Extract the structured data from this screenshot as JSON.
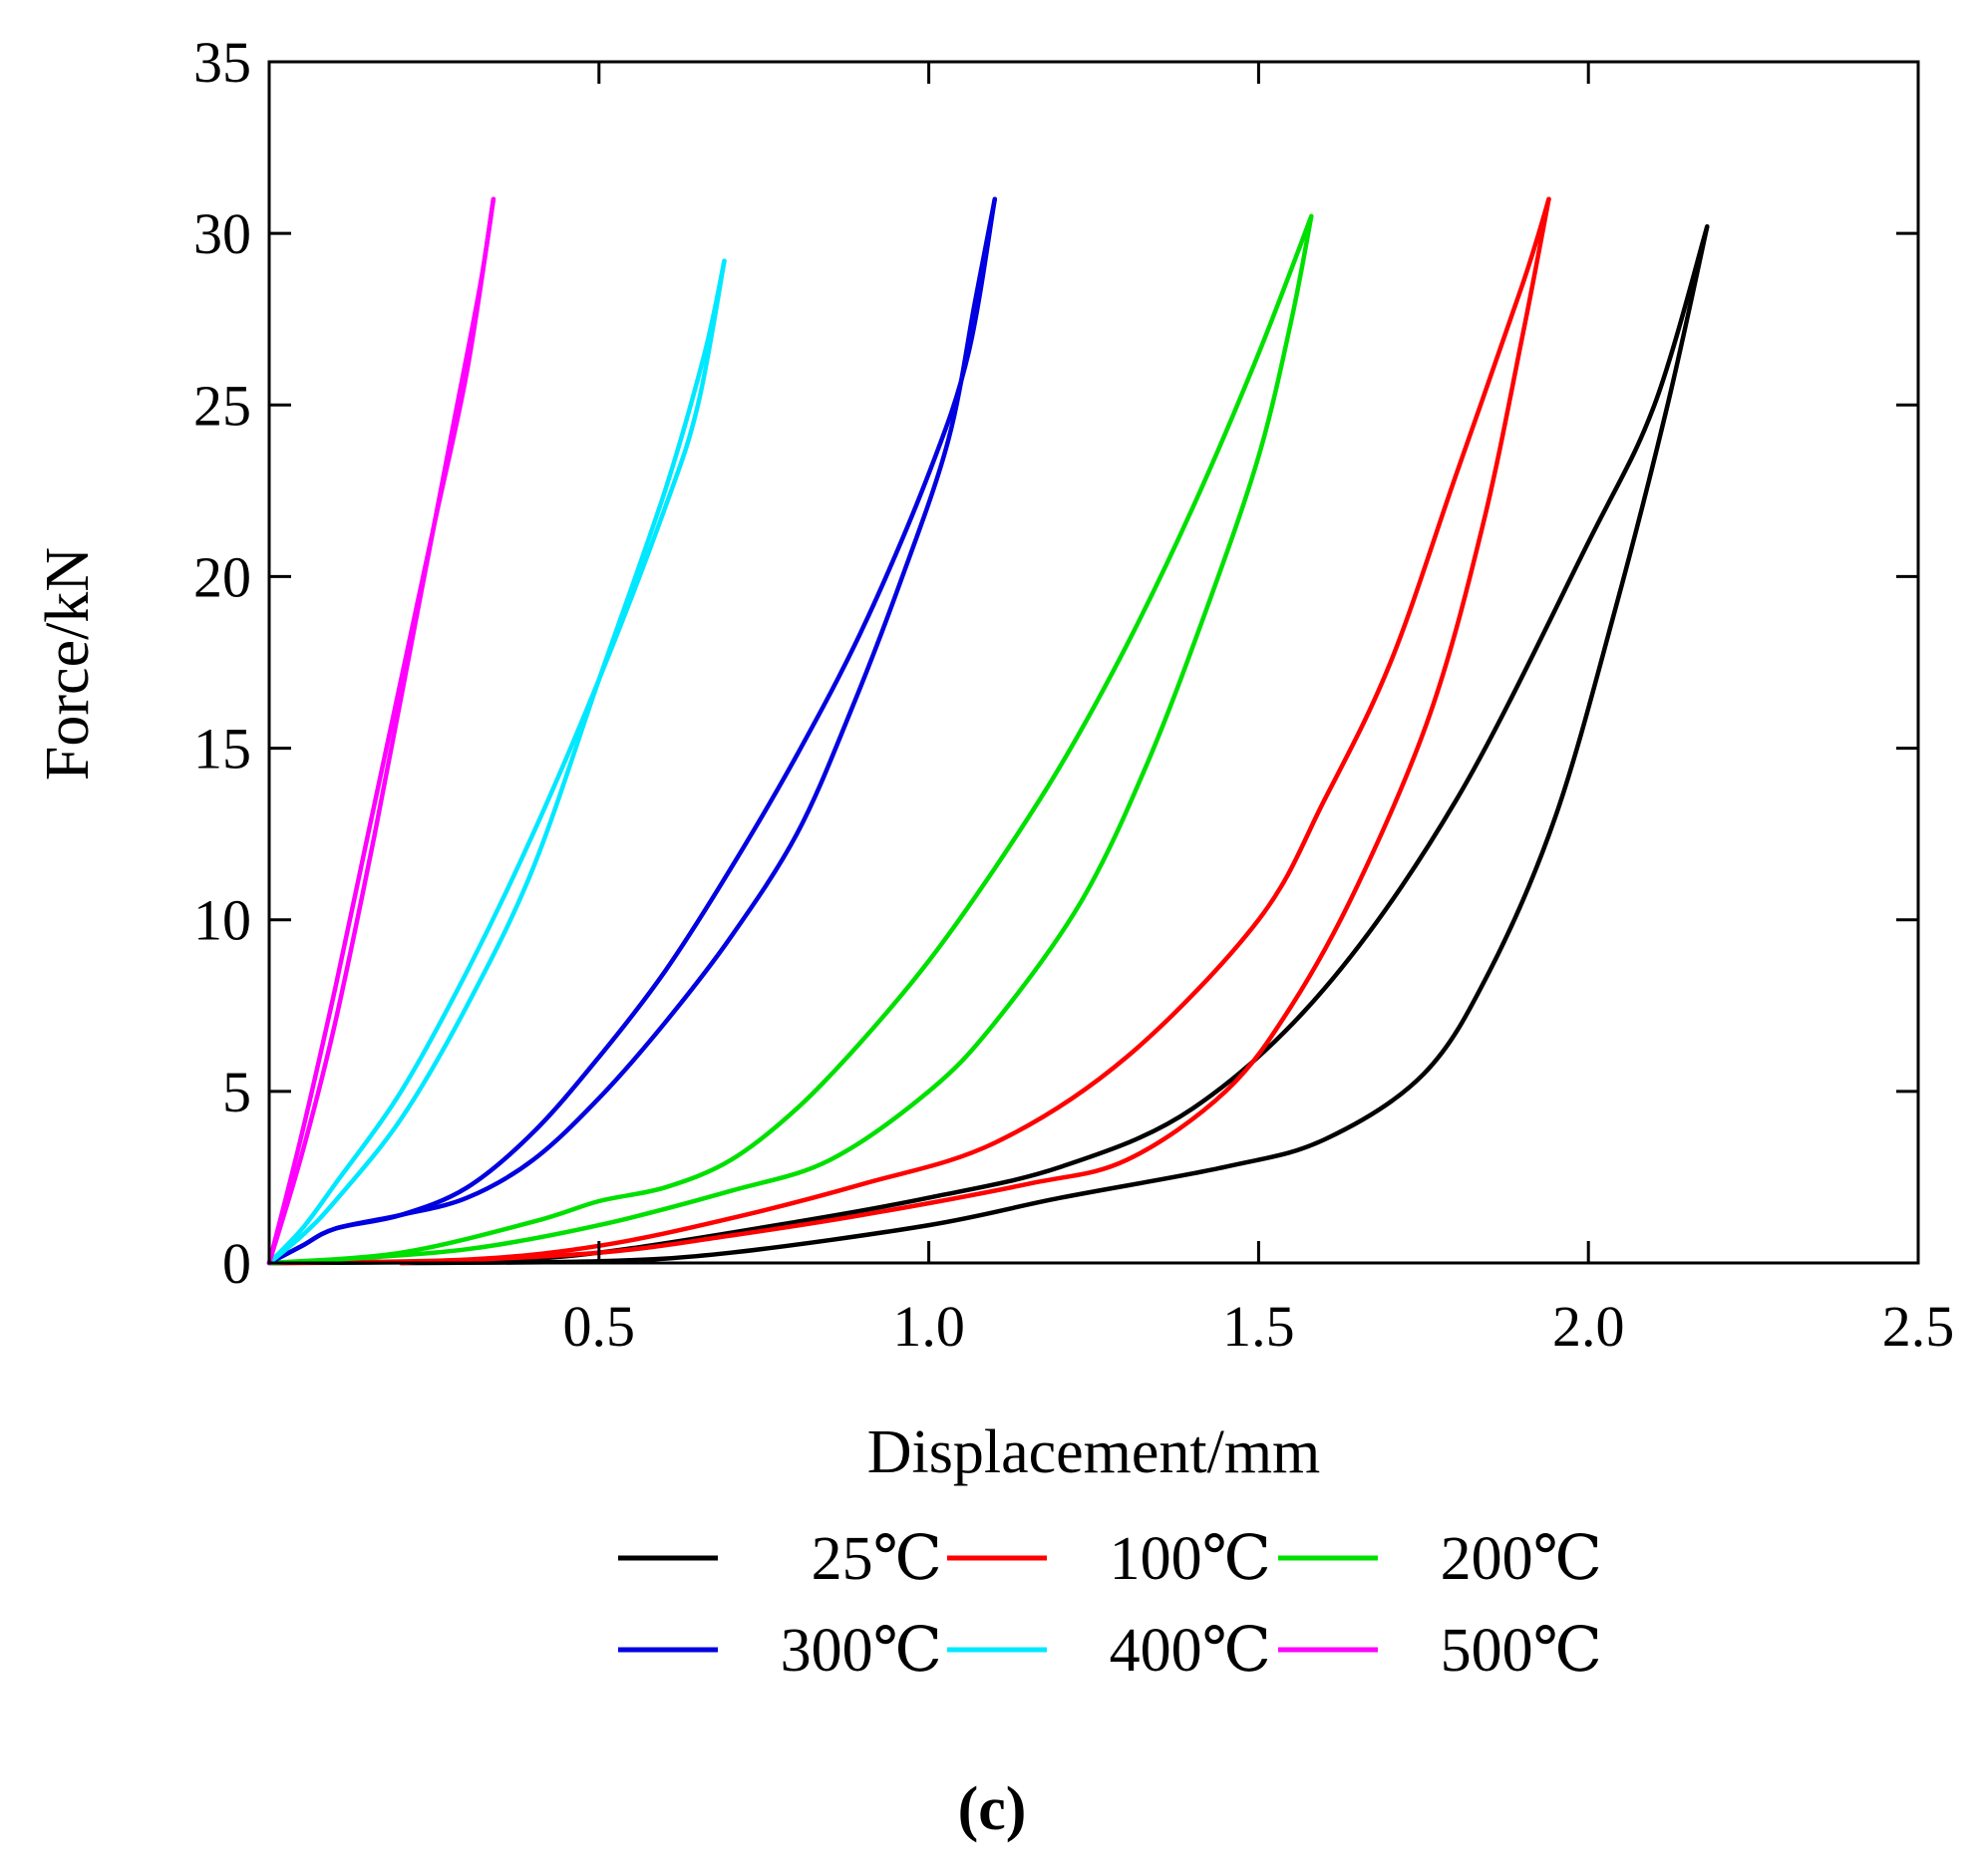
{
  "chart_data": {
    "type": "line",
    "title": "",
    "xlabel": "Displacement/mm",
    "ylabel": "Force/kN",
    "xlim": [
      0,
      2.5
    ],
    "ylim": [
      0,
      35
    ],
    "x_ticks": [
      0.5,
      1.0,
      1.5,
      2.0,
      2.5
    ],
    "x_tick_labels": [
      "0.5",
      "1.0",
      "1.5",
      "2.0",
      "2.5"
    ],
    "y_ticks": [
      0,
      5,
      10,
      15,
      20,
      25,
      30,
      35
    ],
    "y_tick_labels": [
      "0",
      "5",
      "10",
      "15",
      "20",
      "25",
      "30",
      "35"
    ],
    "grid": false,
    "legend_position": "bottom",
    "caption": "(c)",
    "series": [
      {
        "name": "25℃",
        "color": "#000000",
        "loading": [
          [
            0,
            0
          ],
          [
            0.3,
            0.05
          ],
          [
            0.5,
            0.3
          ],
          [
            0.8,
            1.2
          ],
          [
            1.0,
            1.9
          ],
          [
            1.2,
            2.8
          ],
          [
            1.4,
            4.5
          ],
          [
            1.6,
            8.0
          ],
          [
            1.8,
            13.5
          ],
          [
            2.0,
            21.0
          ],
          [
            2.1,
            25.0
          ],
          [
            2.18,
            30.2
          ]
        ],
        "unloading": [
          [
            2.18,
            30.2
          ],
          [
            2.12,
            25.0
          ],
          [
            2.04,
            19.0
          ],
          [
            1.95,
            13.0
          ],
          [
            1.85,
            8.5
          ],
          [
            1.75,
            5.5
          ],
          [
            1.6,
            3.6
          ],
          [
            1.45,
            2.8
          ],
          [
            1.2,
            1.9
          ],
          [
            1.0,
            1.1
          ],
          [
            0.7,
            0.3
          ],
          [
            0.5,
            0.05
          ],
          [
            0.2,
            0
          ]
        ]
      },
      {
        "name": "100℃",
        "color": "#ff0000",
        "loading": [
          [
            0,
            0
          ],
          [
            0.3,
            0.1
          ],
          [
            0.5,
            0.5
          ],
          [
            0.7,
            1.3
          ],
          [
            0.9,
            2.3
          ],
          [
            1.1,
            3.5
          ],
          [
            1.3,
            6.0
          ],
          [
            1.5,
            10.0
          ],
          [
            1.6,
            13.5
          ],
          [
            1.7,
            17.5
          ],
          [
            1.8,
            23.0
          ],
          [
            1.9,
            28.5
          ],
          [
            1.94,
            31.0
          ]
        ],
        "unloading": [
          [
            1.94,
            31.0
          ],
          [
            1.9,
            27.0
          ],
          [
            1.84,
            21.5
          ],
          [
            1.76,
            16.0
          ],
          [
            1.65,
            11.0
          ],
          [
            1.55,
            7.5
          ],
          [
            1.45,
            5.0
          ],
          [
            1.3,
            3.0
          ],
          [
            1.15,
            2.3
          ],
          [
            0.9,
            1.4
          ],
          [
            0.7,
            0.8
          ],
          [
            0.5,
            0.3
          ],
          [
            0.2,
            0
          ]
        ]
      },
      {
        "name": "200℃",
        "color": "#00e000",
        "loading": [
          [
            0,
            0
          ],
          [
            0.2,
            0.3
          ],
          [
            0.4,
            1.2
          ],
          [
            0.5,
            1.8
          ],
          [
            0.6,
            2.2
          ],
          [
            0.7,
            3.0
          ],
          [
            0.8,
            4.5
          ],
          [
            0.9,
            6.5
          ],
          [
            1.0,
            8.8
          ],
          [
            1.1,
            11.5
          ],
          [
            1.2,
            14.5
          ],
          [
            1.3,
            18.0
          ],
          [
            1.4,
            22.0
          ],
          [
            1.5,
            26.5
          ],
          [
            1.58,
            30.5
          ]
        ],
        "unloading": [
          [
            1.58,
            30.5
          ],
          [
            1.55,
            27.5
          ],
          [
            1.5,
            23.5
          ],
          [
            1.42,
            19.0
          ],
          [
            1.33,
            14.5
          ],
          [
            1.23,
            10.5
          ],
          [
            1.1,
            7.0
          ],
          [
            1.0,
            5.0
          ],
          [
            0.85,
            3.0
          ],
          [
            0.7,
            2.1
          ],
          [
            0.5,
            1.1
          ],
          [
            0.3,
            0.4
          ],
          [
            0.1,
            0.1
          ],
          [
            0,
            0
          ]
        ]
      },
      {
        "name": "300℃",
        "color": "#0000e0",
        "loading": [
          [
            0,
            0
          ],
          [
            0.05,
            0.5
          ],
          [
            0.1,
            1.0
          ],
          [
            0.2,
            1.4
          ],
          [
            0.3,
            2.2
          ],
          [
            0.4,
            3.8
          ],
          [
            0.5,
            6.0
          ],
          [
            0.6,
            8.5
          ],
          [
            0.7,
            11.5
          ],
          [
            0.8,
            14.8
          ],
          [
            0.9,
            18.5
          ],
          [
            1.0,
            23.0
          ],
          [
            1.06,
            26.5
          ],
          [
            1.1,
            31.0
          ]
        ],
        "unloading": [
          [
            1.1,
            31.0
          ],
          [
            1.07,
            28.0
          ],
          [
            1.03,
            24.0
          ],
          [
            0.96,
            20.0
          ],
          [
            0.88,
            16.0
          ],
          [
            0.8,
            12.5
          ],
          [
            0.7,
            9.5
          ],
          [
            0.6,
            7.0
          ],
          [
            0.5,
            4.8
          ],
          [
            0.4,
            3.0
          ],
          [
            0.3,
            1.9
          ],
          [
            0.2,
            1.4
          ],
          [
            0.1,
            1.0
          ],
          [
            0.05,
            0.5
          ],
          [
            0,
            0
          ]
        ]
      },
      {
        "name": "400℃",
        "color": "#00e8ff",
        "loading": [
          [
            0,
            0
          ],
          [
            0.05,
            1.0
          ],
          [
            0.1,
            2.3
          ],
          [
            0.2,
            5.0
          ],
          [
            0.3,
            8.5
          ],
          [
            0.4,
            12.5
          ],
          [
            0.5,
            17.0
          ],
          [
            0.6,
            22.0
          ],
          [
            0.65,
            25.0
          ],
          [
            0.69,
            29.2
          ]
        ],
        "unloading": [
          [
            0.69,
            29.2
          ],
          [
            0.66,
            26.5
          ],
          [
            0.6,
            22.5
          ],
          [
            0.5,
            17.0
          ],
          [
            0.4,
            11.5
          ],
          [
            0.3,
            7.5
          ],
          [
            0.2,
            4.2
          ],
          [
            0.1,
            1.8
          ],
          [
            0.05,
            0.8
          ],
          [
            0,
            0
          ]
        ]
      },
      {
        "name": "500℃",
        "color": "#ff00ff",
        "loading": [
          [
            0,
            0
          ],
          [
            0.05,
            3.8
          ],
          [
            0.1,
            8.0
          ],
          [
            0.15,
            12.5
          ],
          [
            0.2,
            17.0
          ],
          [
            0.25,
            21.5
          ],
          [
            0.3,
            26.0
          ],
          [
            0.34,
            31.0
          ]
        ],
        "unloading": [
          [
            0.34,
            31.0
          ],
          [
            0.32,
            28.5
          ],
          [
            0.28,
            24.5
          ],
          [
            0.22,
            18.5
          ],
          [
            0.16,
            12.5
          ],
          [
            0.1,
            7.0
          ],
          [
            0.05,
            3.2
          ],
          [
            0,
            0
          ]
        ]
      }
    ]
  }
}
